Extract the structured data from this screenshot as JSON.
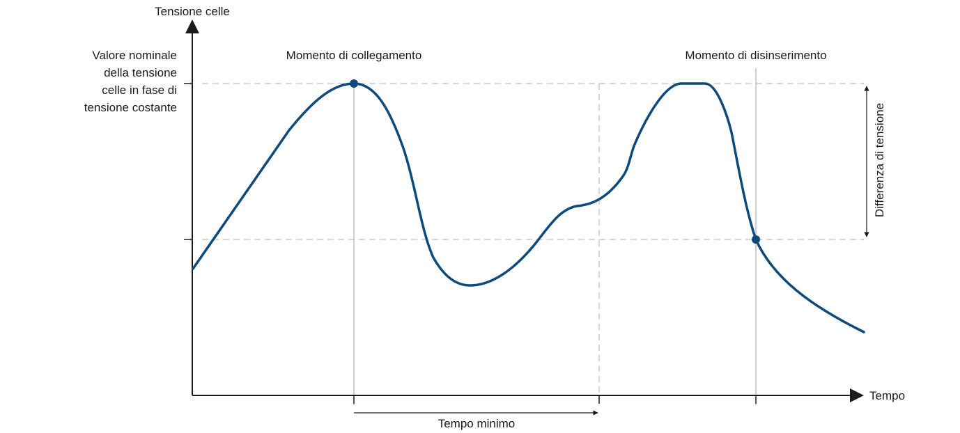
{
  "axes": {
    "y_title": "Tensione celle",
    "x_title": "Tempo"
  },
  "nominal_label": {
    "lines": [
      "Valore nominale",
      "della tensione",
      "celle in fase di",
      "tensione costante"
    ]
  },
  "annotations": {
    "connect_moment": "Momento di collegamento",
    "disconnect_moment": "Momento di disinserimento",
    "minimum_time": "Tempo minimo",
    "voltage_difference": "Differenza di tensione"
  },
  "colors": {
    "curve": "#0d4a7c",
    "axis": "#1a1a1a",
    "guide": "#bdbdbd",
    "thin_line": "#9e9e9e"
  }
}
